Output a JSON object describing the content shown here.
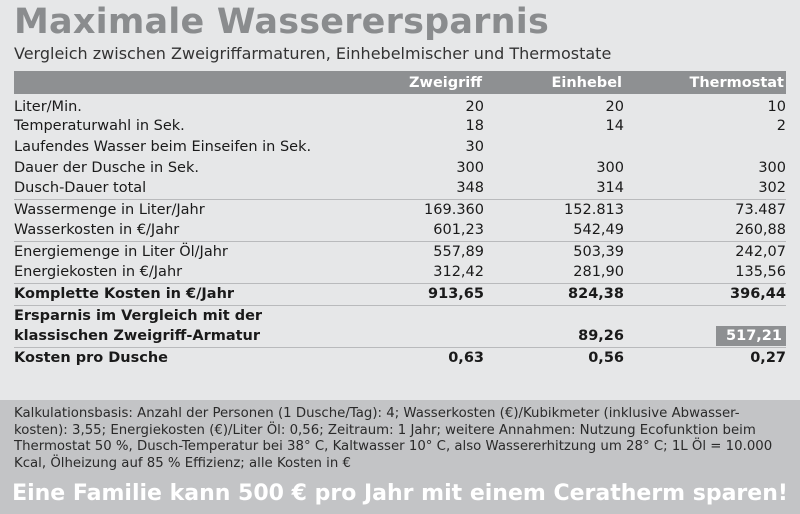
{
  "title": "Maximale Wasserersparnis",
  "subtitle": "Vergleich zwischen Zweigriffarmaturen, Einhebelmischer und Thermostate",
  "table": {
    "headers": [
      "",
      "Zweigriff",
      "Einhebel",
      "Thermostat"
    ],
    "rows": [
      {
        "label": "Liter/Min.",
        "values": [
          "20",
          "20",
          "10"
        ]
      },
      {
        "label": "Temperaturwahl in Sek.",
        "values": [
          "18",
          "14",
          "2"
        ]
      },
      {
        "label": "Laufendes Wasser beim Einseifen in Sek.",
        "values": [
          "30",
          "",
          ""
        ]
      },
      {
        "label": "Dauer der Dusche in Sek.",
        "values": [
          "300",
          "300",
          "300"
        ]
      },
      {
        "label": "Dusch-Dauer total",
        "values": [
          "348",
          "314",
          "302"
        ]
      },
      {
        "label": "Wassermenge in Liter/Jahr",
        "values": [
          "169.360",
          "152.813",
          "73.487"
        ]
      },
      {
        "label": "Wasserkosten in €/Jahr",
        "values": [
          "601,23",
          "542,49",
          "260,88"
        ]
      },
      {
        "label": "Energiemenge in Liter Öl/Jahr",
        "values": [
          "557,89",
          "503,39",
          "242,07"
        ]
      },
      {
        "label": "Energiekosten in €/Jahr",
        "values": [
          "312,42",
          "281,90",
          "135,56"
        ]
      },
      {
        "label": "Komplette Kosten in €/Jahr",
        "values": [
          "913,65",
          "824,38",
          "396,44"
        ]
      },
      {
        "label_line1": "Ersparnis im Vergleich mit der",
        "label_line2": "klassischen Zweigriff-Armatur",
        "values": [
          "",
          "89,26",
          "517,21"
        ]
      },
      {
        "label": "Kosten pro Dusche",
        "values": [
          "0,63",
          "0,56",
          "0,27"
        ]
      }
    ]
  },
  "note": "Kalkulationsbasis: Anzahl der Personen (1 Dusche/Tag): 4; Wasserkosten (€)/Kubikmeter (inklusive Abwasser-kosten): 3,55; Energiekosten (€)/Liter Öl: 0,56; Zeitraum: 1 Jahr; weitere Annahmen: Nutzung Ecofunktion beim Thermostat 50 %, Dusch-Temperatur bei 38° C, Kaltwasser 10° C, also Wassererhitzung um 28° C; 1L Öl = 10.000 Kcal, Ölheizung auf 85 % Effizienz; alle Kosten in €",
  "slogan": "Eine Familie kann 500 € pro Jahr mit einem Ceratherm sparen!"
}
